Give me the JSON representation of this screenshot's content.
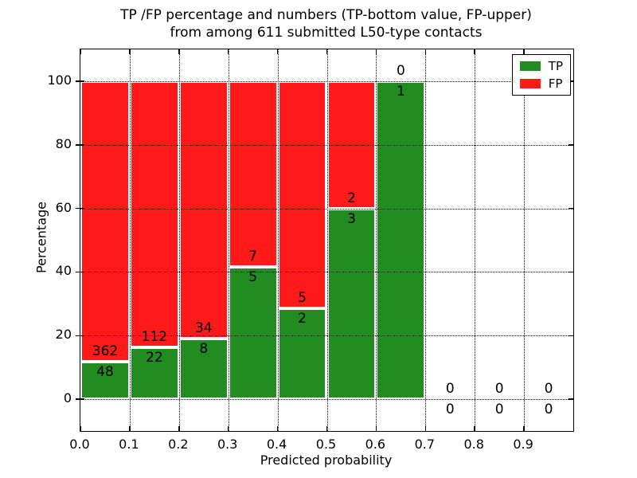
{
  "chart_data": {
    "type": "bar",
    "stacked": true,
    "title_lines": [
      "TP /FP percentage and numbers (TP-bottom value, FP-upper)",
      "from among 611 submitted L50-type contacts"
    ],
    "xlabel": "Predicted probability",
    "ylabel": "Percentage",
    "xlim": [
      0.0,
      1.0
    ],
    "ylim": [
      -10,
      110
    ],
    "bin_width": 0.1,
    "bin_starts": [
      0.0,
      0.1,
      0.2,
      0.3,
      0.4,
      0.5,
      0.6,
      0.7,
      0.8,
      0.9
    ],
    "x_tick_labels": [
      "0.0",
      "0.1",
      "0.2",
      "0.3",
      "0.4",
      "0.5",
      "0.6",
      "0.7",
      "0.8",
      "0.9"
    ],
    "y_ticks": [
      0,
      20,
      40,
      60,
      80,
      100
    ],
    "grid": "dotted",
    "total_submitted_contacts": 611,
    "series": [
      {
        "name": "TP",
        "color": "#228b22",
        "counts": [
          48,
          22,
          8,
          5,
          2,
          3,
          1,
          0,
          0,
          0
        ]
      },
      {
        "name": "FP",
        "color": "#ff1a1a",
        "counts": [
          362,
          112,
          34,
          7,
          5,
          2,
          0,
          0,
          0,
          0
        ]
      }
    ],
    "tp_percent_heights": [
      11.7,
      16.4,
      19.0,
      41.7,
      28.6,
      60.0,
      100.0,
      0.0,
      0.0,
      0.0
    ],
    "legend_position": "upper right",
    "legend": [
      {
        "label": "TP",
        "color": "#228b22"
      },
      {
        "label": "FP",
        "color": "#ff1a1a"
      }
    ]
  }
}
